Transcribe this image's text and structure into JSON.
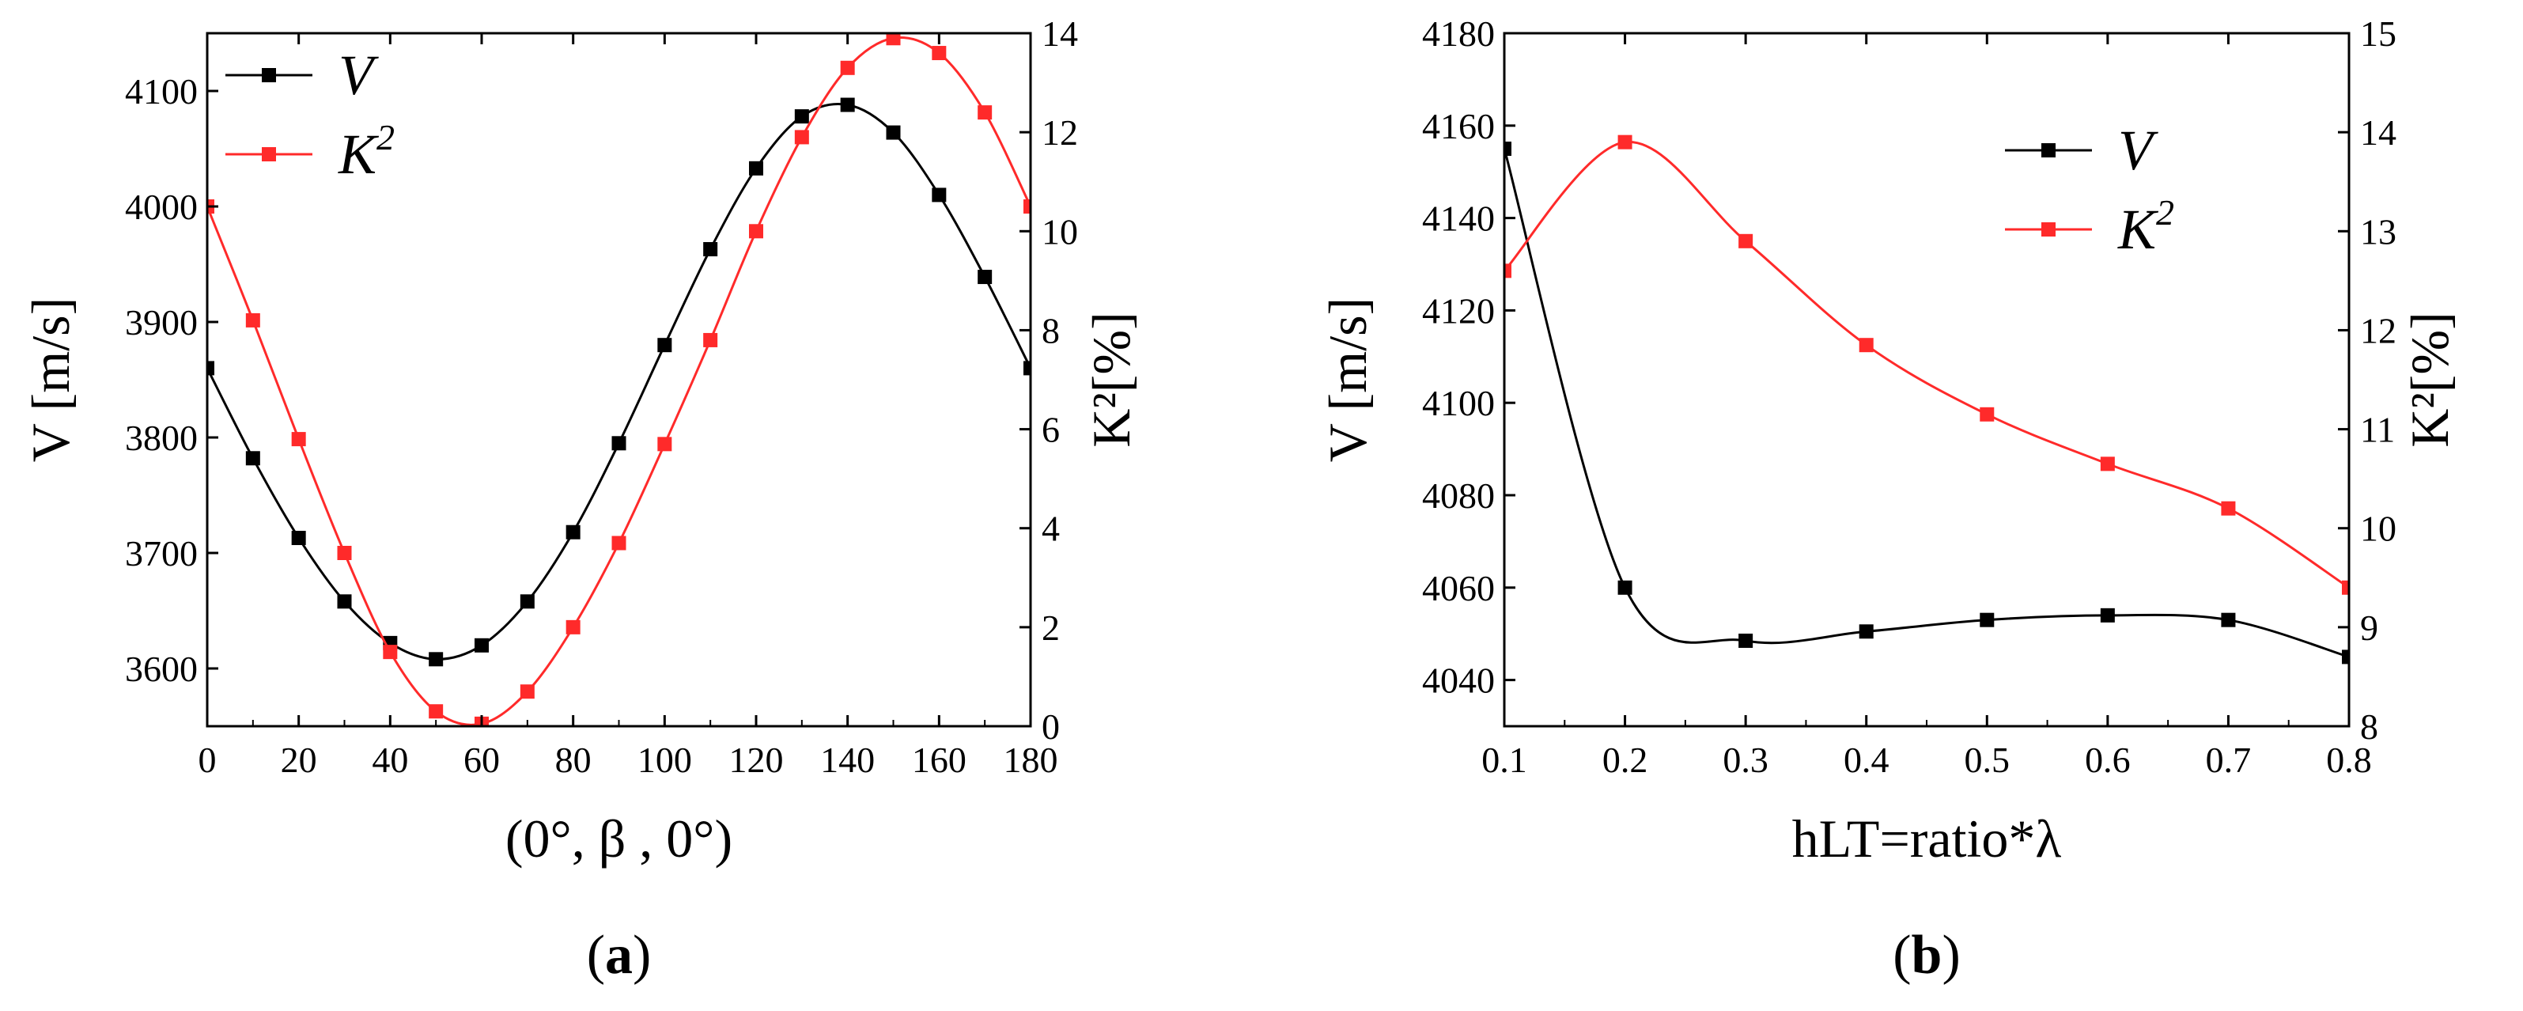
{
  "chart_data": [
    {
      "type": "line",
      "panel_label": "a",
      "xlabel": "(0°, β , 0°)",
      "ylabel_left": "V [m/s]",
      "ylabel_right": "K²[%]",
      "x": [
        0,
        10,
        20,
        30,
        40,
        50,
        60,
        70,
        80,
        90,
        100,
        110,
        120,
        130,
        140,
        150,
        160,
        170,
        180
      ],
      "xlim": [
        0,
        180
      ],
      "xticks": [
        0,
        20,
        40,
        60,
        80,
        100,
        120,
        140,
        160,
        180
      ],
      "ylim_left": [
        3550,
        4150
      ],
      "yticks_left": [
        3600,
        3700,
        3800,
        3900,
        4000,
        4100
      ],
      "ylim_right": [
        0,
        14
      ],
      "yticks_right": [
        0,
        2,
        4,
        6,
        8,
        10,
        12,
        14
      ],
      "legend_position": "top-left",
      "series": [
        {
          "name": "V",
          "sup": "",
          "color": "#000000",
          "axis": "left",
          "values": [
            3860,
            3782,
            3713,
            3658,
            3622,
            3608,
            3620,
            3658,
            3718,
            3795,
            3880,
            3963,
            4033,
            4078,
            4088,
            4064,
            4010,
            3939,
            3860
          ]
        },
        {
          "name": "K",
          "sup": "2",
          "color": "#ff2a2a",
          "axis": "right",
          "values": [
            10.5,
            8.2,
            5.8,
            3.5,
            1.5,
            0.3,
            0.05,
            0.7,
            2.0,
            3.7,
            5.7,
            7.8,
            10.0,
            11.9,
            13.3,
            13.9,
            13.6,
            12.4,
            10.5
          ]
        }
      ]
    },
    {
      "type": "line",
      "panel_label": "b",
      "xlabel": "hLT=ratio*λ",
      "ylabel_left": "V [m/s]",
      "ylabel_right": "K²[%]",
      "x": [
        0.1,
        0.2,
        0.3,
        0.4,
        0.5,
        0.6,
        0.7,
        0.8
      ],
      "xlim": [
        0.1,
        0.8
      ],
      "xticks": [
        0.1,
        0.2,
        0.3,
        0.4,
        0.5,
        0.6,
        0.7,
        0.8
      ],
      "ylim_left": [
        4030,
        4180
      ],
      "yticks_left": [
        4040,
        4060,
        4080,
        4100,
        4120,
        4140,
        4160,
        4180
      ],
      "ylim_right": [
        8,
        15
      ],
      "yticks_right": [
        8,
        9,
        10,
        11,
        12,
        13,
        14,
        15
      ],
      "legend_position": "top-right",
      "series": [
        {
          "name": "V",
          "sup": "",
          "color": "#000000",
          "axis": "left",
          "values": [
            4155,
            4060,
            4048.5,
            4050.5,
            4053,
            4054,
            4053,
            4045
          ]
        },
        {
          "name": "K",
          "sup": "2",
          "color": "#ff2a2a",
          "axis": "right",
          "values": [
            12.6,
            13.9,
            12.9,
            11.85,
            11.15,
            10.65,
            10.2,
            9.4
          ]
        }
      ]
    }
  ]
}
